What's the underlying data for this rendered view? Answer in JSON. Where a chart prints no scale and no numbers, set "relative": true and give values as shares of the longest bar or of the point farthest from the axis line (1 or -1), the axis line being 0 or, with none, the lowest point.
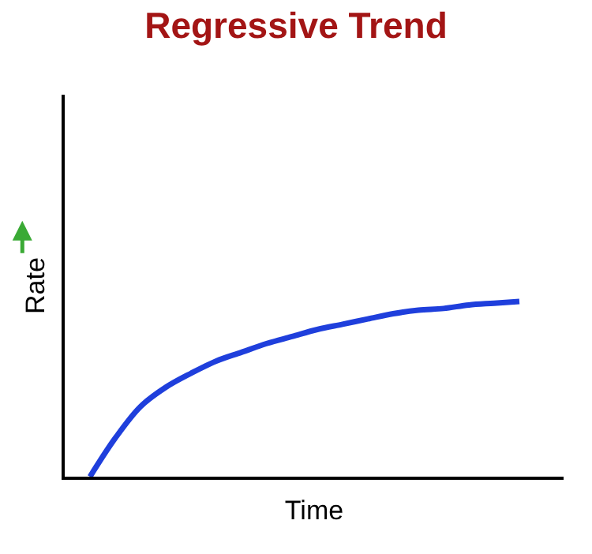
{
  "chart_data": {
    "type": "line",
    "title": "Regressive Trend",
    "xlabel": "Time",
    "ylabel": "Rate",
    "relative": true,
    "marker": "none",
    "line_style": "solid",
    "categories": [
      null,
      null,
      null,
      null,
      null,
      null,
      null,
      null,
      null,
      null,
      null,
      null,
      null,
      null,
      null,
      null,
      null,
      null,
      null,
      null,
      null
    ],
    "series": [
      {
        "color": "#1f3fdc",
        "values": [
          null,
          0,
          0.22,
          0.4,
          0.51,
          0.59,
          0.66,
          0.71,
          0.76,
          0.8,
          0.84,
          0.87,
          0.9,
          0.93,
          0.95,
          0.96,
          0.98,
          0.99,
          1.0,
          null,
          null
        ]
      }
    ]
  }
}
